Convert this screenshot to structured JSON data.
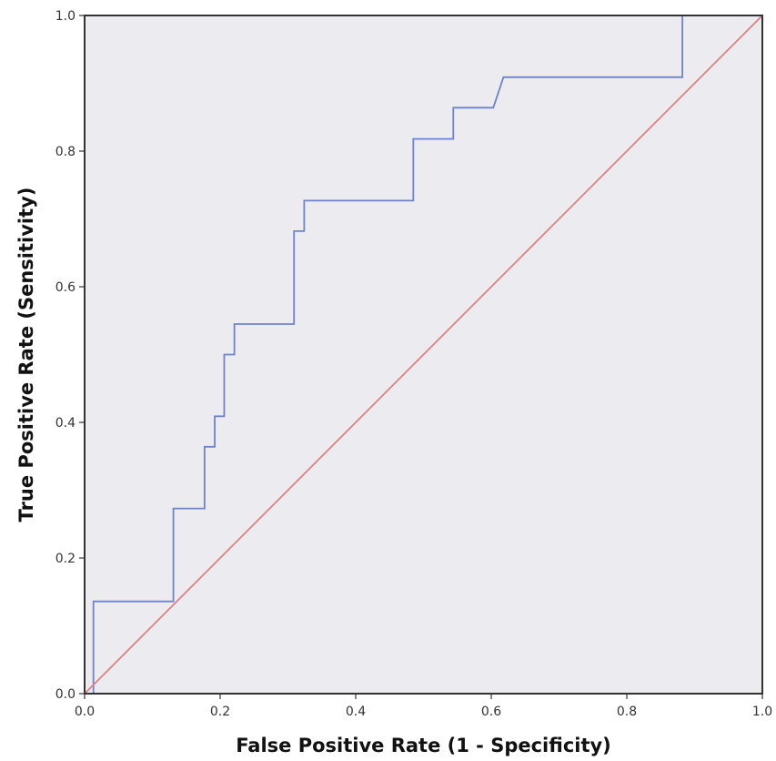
{
  "chart_data": {
    "type": "line",
    "title": "",
    "xlabel": "False Positive Rate (1 - Specificity)",
    "ylabel": "True Positive Rate (Sensitivity)",
    "xlim": [
      0,
      1
    ],
    "ylim": [
      0,
      1
    ],
    "x_ticks": [
      "0.0",
      "0.2",
      "0.4",
      "0.6",
      "0.8",
      "1.0"
    ],
    "y_ticks": [
      "0.0",
      "0.2",
      "0.4",
      "0.6",
      "0.8",
      "1.0"
    ],
    "grid": false,
    "legend": "none",
    "background_color": "#ebebf0",
    "series": [
      {
        "color": "#6f84c9",
        "step": true,
        "points": [
          [
            0.0,
            0.0
          ],
          [
            0.013,
            0.0
          ],
          [
            0.013,
            0.136
          ],
          [
            0.131,
            0.136
          ],
          [
            0.131,
            0.273
          ],
          [
            0.177,
            0.273
          ],
          [
            0.177,
            0.364
          ],
          [
            0.192,
            0.364
          ],
          [
            0.192,
            0.409
          ],
          [
            0.206,
            0.409
          ],
          [
            0.206,
            0.5
          ],
          [
            0.221,
            0.5
          ],
          [
            0.221,
            0.545
          ],
          [
            0.309,
            0.545
          ],
          [
            0.309,
            0.682
          ],
          [
            0.324,
            0.682
          ],
          [
            0.324,
            0.727
          ],
          [
            0.485,
            0.727
          ],
          [
            0.485,
            0.818
          ],
          [
            0.544,
            0.818
          ],
          [
            0.544,
            0.864
          ],
          [
            0.603,
            0.864
          ],
          [
            0.618,
            0.909
          ],
          [
            0.882,
            0.909
          ],
          [
            0.882,
            1.0
          ],
          [
            1.0,
            1.0
          ]
        ]
      },
      {
        "color": "#e07f80",
        "step": false,
        "points": [
          [
            0.0,
            0.0
          ],
          [
            1.0,
            1.0
          ]
        ]
      }
    ]
  }
}
